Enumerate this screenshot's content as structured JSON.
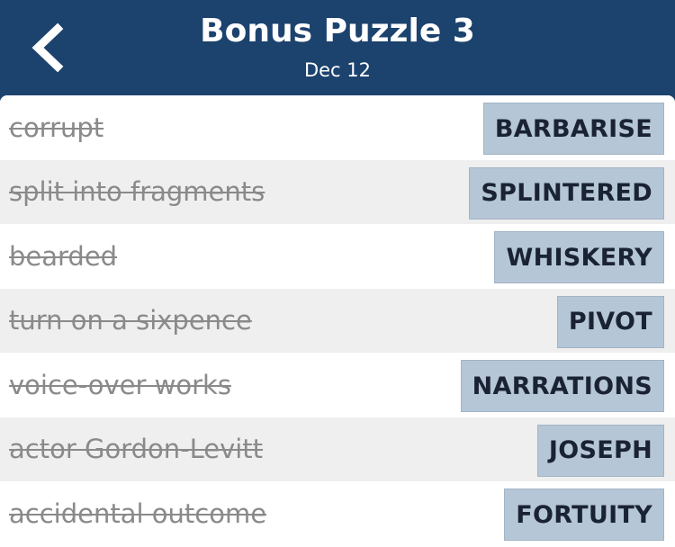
{
  "header": {
    "title": "Bonus Puzzle 3",
    "date": "Dec 12",
    "back_icon": "chevron-left-icon"
  },
  "colors": {
    "header_bg": "#1c426e",
    "answer_bg": "#b5c6d6",
    "clue_text": "#8a8a8a",
    "answer_text": "#1a2333"
  },
  "rows": [
    {
      "clue": "corrupt",
      "answer": "BARBARISE"
    },
    {
      "clue": "split into fragments",
      "answer": "SPLINTERED"
    },
    {
      "clue": "bearded",
      "answer": "WHISKERY"
    },
    {
      "clue": "turn on a sixpence",
      "answer": "PIVOT"
    },
    {
      "clue": "voice-over works",
      "answer": "NARRATIONS"
    },
    {
      "clue": "actor Gordon-Levitt",
      "answer": "JOSEPH"
    },
    {
      "clue": "accidental outcome",
      "answer": "FORTUITY"
    }
  ]
}
